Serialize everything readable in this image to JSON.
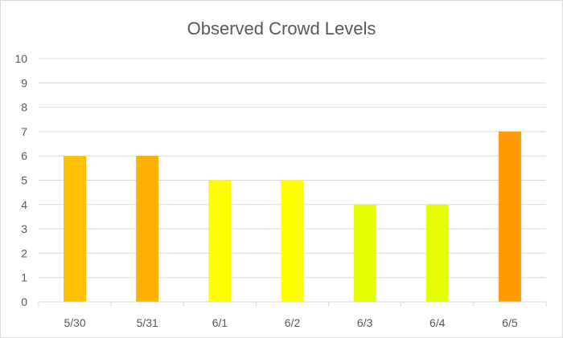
{
  "chart_data": {
    "type": "bar",
    "title": "Observed Crowd Levels",
    "xlabel": "",
    "ylabel": "",
    "categories": [
      "5/30",
      "5/31",
      "6/1",
      "6/2",
      "6/3",
      "6/4",
      "6/5"
    ],
    "values": [
      6,
      6,
      5,
      5,
      4,
      4,
      7
    ],
    "bar_colors": [
      "#ffc000",
      "#ffb000",
      "#ffff00",
      "#ffff00",
      "#e6ff00",
      "#e6ff00",
      "#ff9a00"
    ],
    "ylim": [
      0,
      10
    ],
    "yticks": [
      "0",
      "1",
      "2",
      "3",
      "4",
      "5",
      "6",
      "7",
      "8",
      "9",
      "10"
    ],
    "grid": true,
    "legend": "none"
  }
}
